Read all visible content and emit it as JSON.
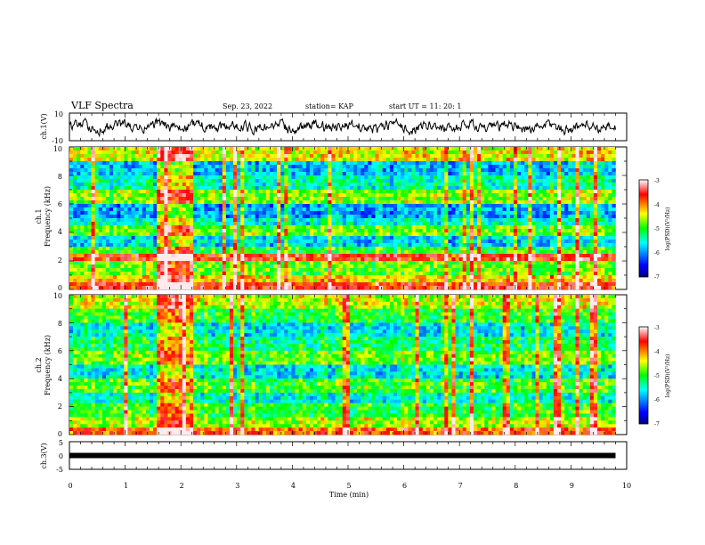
{
  "header": {
    "title": "VLF Spectra",
    "date": "Sep. 23, 2022",
    "station": "station= KAP",
    "start": "start  UT  =   11: 20: 1"
  },
  "chart_data": [
    {
      "type": "line",
      "name": "ch1-waveform",
      "ylabel": "ch.1(V)",
      "ylim": [
        -10,
        10
      ],
      "ytick_labels": [
        "10",
        "-10"
      ],
      "xlim": [
        0,
        10
      ],
      "line_color": "#000000",
      "note_values": "continuous noisy waveform oscillating roughly between -4 and 4 V over 0 to 9.8 min"
    },
    {
      "type": "heatmap",
      "name": "ch1-spectrogram",
      "ylabel": "ch.1",
      "ylabel2": "Frequency (kHz)",
      "ylim": [
        0,
        10
      ],
      "ytick_labels": [
        "0",
        "2",
        "4",
        "6",
        "8",
        "10"
      ],
      "xlim": [
        0,
        10
      ],
      "data_xmax": 9.8,
      "colorbar": {
        "label": "log(PSD)(V²/Hz)",
        "range": [
          -7,
          -3
        ],
        "tick_labels": [
          "-3",
          "-4",
          "-5",
          "-6",
          "-7"
        ]
      },
      "bands_khz": [
        {
          "lo": 0.0,
          "hi": 0.4,
          "level": -3.6
        },
        {
          "lo": 0.4,
          "hi": 1.0,
          "level": -4.3
        },
        {
          "lo": 1.0,
          "hi": 2.0,
          "level": -4.8
        },
        {
          "lo": 2.0,
          "hi": 2.4,
          "level": -3.6
        },
        {
          "lo": 2.4,
          "hi": 3.0,
          "level": -5.0
        },
        {
          "lo": 3.0,
          "hi": 3.8,
          "level": -5.7
        },
        {
          "lo": 3.8,
          "hi": 4.6,
          "level": -4.8
        },
        {
          "lo": 4.6,
          "hi": 5.0,
          "level": -5.5
        },
        {
          "lo": 5.0,
          "hi": 6.0,
          "level": -5.9
        },
        {
          "lo": 6.0,
          "hi": 7.0,
          "level": -4.7
        },
        {
          "lo": 7.0,
          "hi": 8.0,
          "level": -5.4
        },
        {
          "lo": 8.0,
          "hi": 9.0,
          "level": -5.8
        },
        {
          "lo": 9.0,
          "hi": 10.0,
          "level": -4.4
        }
      ],
      "burst_min": [
        1.55,
        2.2
      ]
    },
    {
      "type": "heatmap",
      "name": "ch2-spectrogram",
      "ylabel": "ch.2",
      "ylabel2": "Frequency (kHz)",
      "ylim": [
        0,
        10
      ],
      "ytick_labels": [
        "0",
        "2",
        "4",
        "6",
        "8",
        "10"
      ],
      "xlim": [
        0,
        10
      ],
      "data_xmax": 9.8,
      "colorbar": {
        "label": "log(PSD)(V²/Hz)",
        "range": [
          -7,
          -3
        ],
        "tick_labels": [
          "-3",
          "-4",
          "-5",
          "-6",
          "-7"
        ]
      },
      "bands_khz": [
        {
          "lo": 0.0,
          "hi": 0.4,
          "level": -3.8
        },
        {
          "lo": 0.4,
          "hi": 1.2,
          "level": -4.6
        },
        {
          "lo": 1.2,
          "hi": 2.2,
          "level": -5.0
        },
        {
          "lo": 2.2,
          "hi": 3.0,
          "level": -5.5
        },
        {
          "lo": 3.0,
          "hi": 4.0,
          "level": -4.9
        },
        {
          "lo": 4.0,
          "hi": 5.0,
          "level": -5.6
        },
        {
          "lo": 5.0,
          "hi": 6.0,
          "level": -4.8
        },
        {
          "lo": 6.0,
          "hi": 7.0,
          "level": -5.2
        },
        {
          "lo": 7.0,
          "hi": 8.0,
          "level": -5.6
        },
        {
          "lo": 8.0,
          "hi": 9.0,
          "level": -5.0
        },
        {
          "lo": 9.0,
          "hi": 10.0,
          "level": -4.5
        }
      ],
      "burst_min": [
        1.55,
        2.2
      ]
    },
    {
      "type": "line",
      "name": "ch3-waveform",
      "ylabel": "ch.3(V)",
      "ylim": [
        -5,
        5
      ],
      "ytick_labels": [
        "5",
        "0",
        "-5"
      ],
      "xlim": [
        0,
        10
      ],
      "data_xmax": 9.8,
      "level": 0,
      "line_color": "#000000",
      "xlabel": "Time (min)",
      "xtick_labels": [
        "0",
        "1",
        "2",
        "3",
        "4",
        "5",
        "6",
        "7",
        "8",
        "9",
        "10"
      ]
    }
  ]
}
